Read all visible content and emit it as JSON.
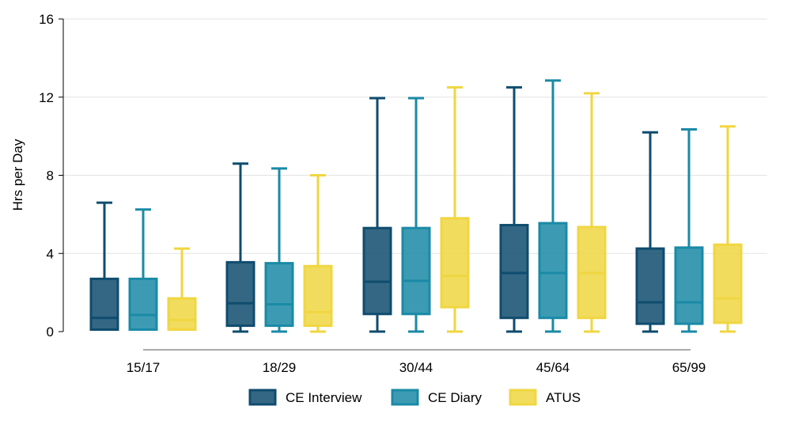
{
  "chart_data": {
    "type": "boxplot",
    "ylabel": "Hrs per Day",
    "xlabel": "",
    "ylim": [
      0,
      16
    ],
    "yticks": [
      0,
      4,
      8,
      12,
      16
    ],
    "grid": "horizontal",
    "legend_position": "bottom",
    "categories": [
      "15/17",
      "18/29",
      "30/44",
      "45/64",
      "65/99"
    ],
    "series": [
      {
        "name": "CE Interview",
        "color": "#0f4c6e",
        "boxes": [
          {
            "min": 0.1,
            "q1": 0.1,
            "median": 0.7,
            "q3": 2.7,
            "max": 6.6
          },
          {
            "min": 0.0,
            "q1": 0.3,
            "median": 1.45,
            "q3": 3.55,
            "max": 8.6
          },
          {
            "min": 0.0,
            "q1": 0.9,
            "median": 2.55,
            "q3": 5.3,
            "max": 11.95
          },
          {
            "min": 0.0,
            "q1": 0.7,
            "median": 3.0,
            "q3": 5.45,
            "max": 12.5
          },
          {
            "min": 0.0,
            "q1": 0.4,
            "median": 1.5,
            "q3": 4.25,
            "max": 10.2
          }
        ]
      },
      {
        "name": "CE Diary",
        "color": "#1a8aa6",
        "boxes": [
          {
            "min": 0.1,
            "q1": 0.1,
            "median": 0.85,
            "q3": 2.7,
            "max": 6.25
          },
          {
            "min": 0.0,
            "q1": 0.3,
            "median": 1.4,
            "q3": 3.5,
            "max": 8.35
          },
          {
            "min": 0.0,
            "q1": 0.9,
            "median": 2.6,
            "q3": 5.3,
            "max": 11.95
          },
          {
            "min": 0.0,
            "q1": 0.7,
            "median": 3.0,
            "q3": 5.55,
            "max": 12.85
          },
          {
            "min": 0.0,
            "q1": 0.4,
            "median": 1.5,
            "q3": 4.3,
            "max": 10.35
          }
        ]
      },
      {
        "name": "ATUS",
        "color": "#f0d641",
        "boxes": [
          {
            "min": 0.1,
            "q1": 0.1,
            "median": 0.6,
            "q3": 1.7,
            "max": 4.25
          },
          {
            "min": 0.0,
            "q1": 0.3,
            "median": 1.0,
            "q3": 3.35,
            "max": 8.0
          },
          {
            "min": 0.0,
            "q1": 1.25,
            "median": 2.85,
            "q3": 5.8,
            "max": 12.5
          },
          {
            "min": 0.0,
            "q1": 0.7,
            "median": 3.0,
            "q3": 5.35,
            "max": 12.2
          },
          {
            "min": 0.0,
            "q1": 0.45,
            "median": 1.7,
            "q3": 4.45,
            "max": 10.5
          }
        ]
      }
    ]
  }
}
